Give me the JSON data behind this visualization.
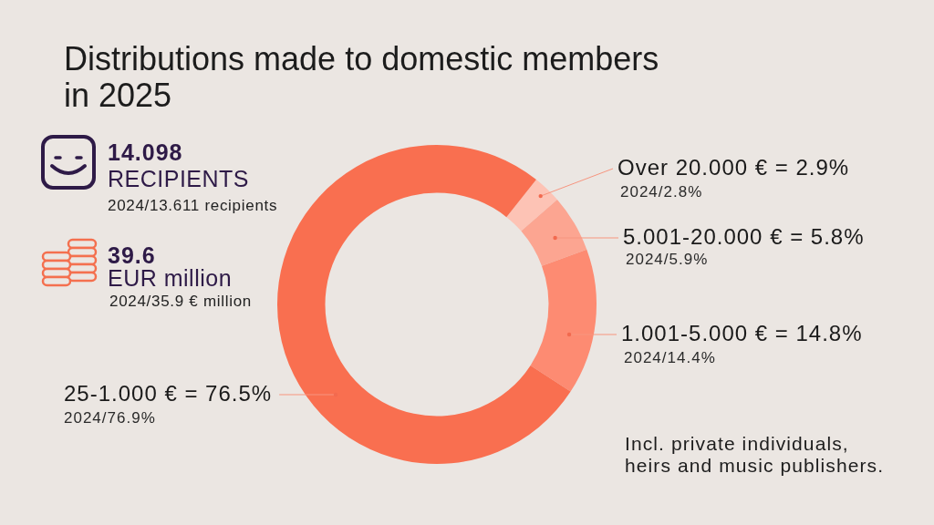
{
  "chart_data": {
    "type": "donut",
    "title": "Distributions made to domestic members in 2025",
    "categories": [
      "Over 20.000 €",
      "5.001-20.000 €",
      "1.001-5.000 €",
      "25-1.000 €"
    ],
    "values": [
      2.9,
      5.8,
      14.8,
      76.5
    ],
    "colors": [
      "#fdc3b5",
      "#fca591",
      "#fd8b72",
      "#f96f50"
    ],
    "value_labels": [
      "= 2.9%",
      "= 5.8%",
      "= 14.8%",
      "= 76.5%"
    ],
    "annotations": [
      "14.098",
      "RECIPIENTS",
      "2024/13.611 recipients",
      "39.6",
      "EUR million",
      "2024/35.9 € million",
      {
        "text": "2024/2.8%",
        "x": "Over 20.000 €"
      },
      {
        "text": "2024/5.9%",
        "x": "5.001-20.000 €"
      },
      {
        "text": "2024/14.4%",
        "x": "1.001-5.000 €"
      },
      {
        "text": "2024/76.9%",
        "x": "25-1.000 €"
      },
      "Incl. private individuals, heirs and music publishers."
    ]
  }
}
